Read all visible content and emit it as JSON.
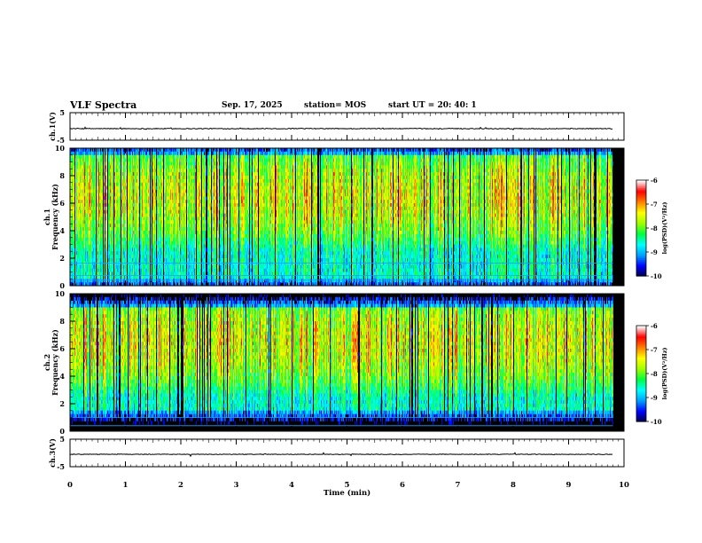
{
  "header": {
    "title": "VLF Spectra",
    "date": "Sep. 17, 2025",
    "station": "station= MOS",
    "start": "start  UT =   20: 40: 1"
  },
  "colors": {
    "spectrogram_background": "#000000",
    "colormap": [
      "#000040",
      "#0000ff",
      "#00a0ff",
      "#00ffff",
      "#00ff40",
      "#a0ff00",
      "#ffff00",
      "#ff8000",
      "#ff0000",
      "#ffffff"
    ],
    "line_color": "#0000ff"
  },
  "chart_data": [
    {
      "type": "line",
      "title": "",
      "ylabel": "ch.1(V)",
      "ylim": [
        -5,
        5
      ],
      "yticks": [
        "5",
        "-5"
      ],
      "series": [
        {
          "name": "ch.1 waveform",
          "level": -0.8,
          "amplitude": 0.15
        }
      ]
    },
    {
      "type": "heatmap",
      "ylabel_channel": "ch.1",
      "ylabel": "Frequency (kHz)",
      "ylim": [
        0,
        10
      ],
      "yticks": [
        "0",
        "2",
        "4",
        "6",
        "8",
        "10"
      ],
      "band_kHz": [
        0.5,
        9.5
      ],
      "peak_kHz": 6.5,
      "horizontal_lines_kHz": [
        0.4,
        0.75,
        1.65
      ],
      "colorbar": {
        "label": "log(PSD)(V²/Hz)",
        "range": [
          -10,
          -6
        ],
        "ticks": [
          "-6",
          "-7",
          "-8",
          "-9",
          "-10"
        ]
      }
    },
    {
      "type": "heatmap",
      "ylabel_channel": "ch.2",
      "ylabel": "Frequency (kHz)",
      "ylim": [
        0,
        10
      ],
      "yticks": [
        "0",
        "2",
        "4",
        "6",
        "8",
        "10"
      ],
      "band_kHz": [
        1.5,
        9.0
      ],
      "peak_kHz": 6.5,
      "horizontal_lines_kHz": [
        0.4,
        1.0
      ],
      "colorbar": {
        "label": "log(PSD)(V²/Hz)",
        "range": [
          -10,
          -6
        ],
        "ticks": [
          "-6",
          "-7",
          "-8",
          "-9",
          "-10"
        ]
      }
    },
    {
      "type": "line",
      "title": "",
      "ylabel": "ch.3(V)",
      "ylim": [
        -5,
        5
      ],
      "yticks": [
        "5",
        "-5"
      ],
      "series": [
        {
          "name": "ch.3 waveform",
          "level": -0.5,
          "amplitude": 0.12
        }
      ]
    }
  ],
  "x_axis": {
    "label": "Time (min)",
    "xlim": [
      0,
      10
    ],
    "data_extent": [
      0,
      9.8
    ],
    "ticks": [
      "0",
      "1",
      "2",
      "3",
      "4",
      "5",
      "6",
      "7",
      "8",
      "9",
      "10"
    ]
  }
}
